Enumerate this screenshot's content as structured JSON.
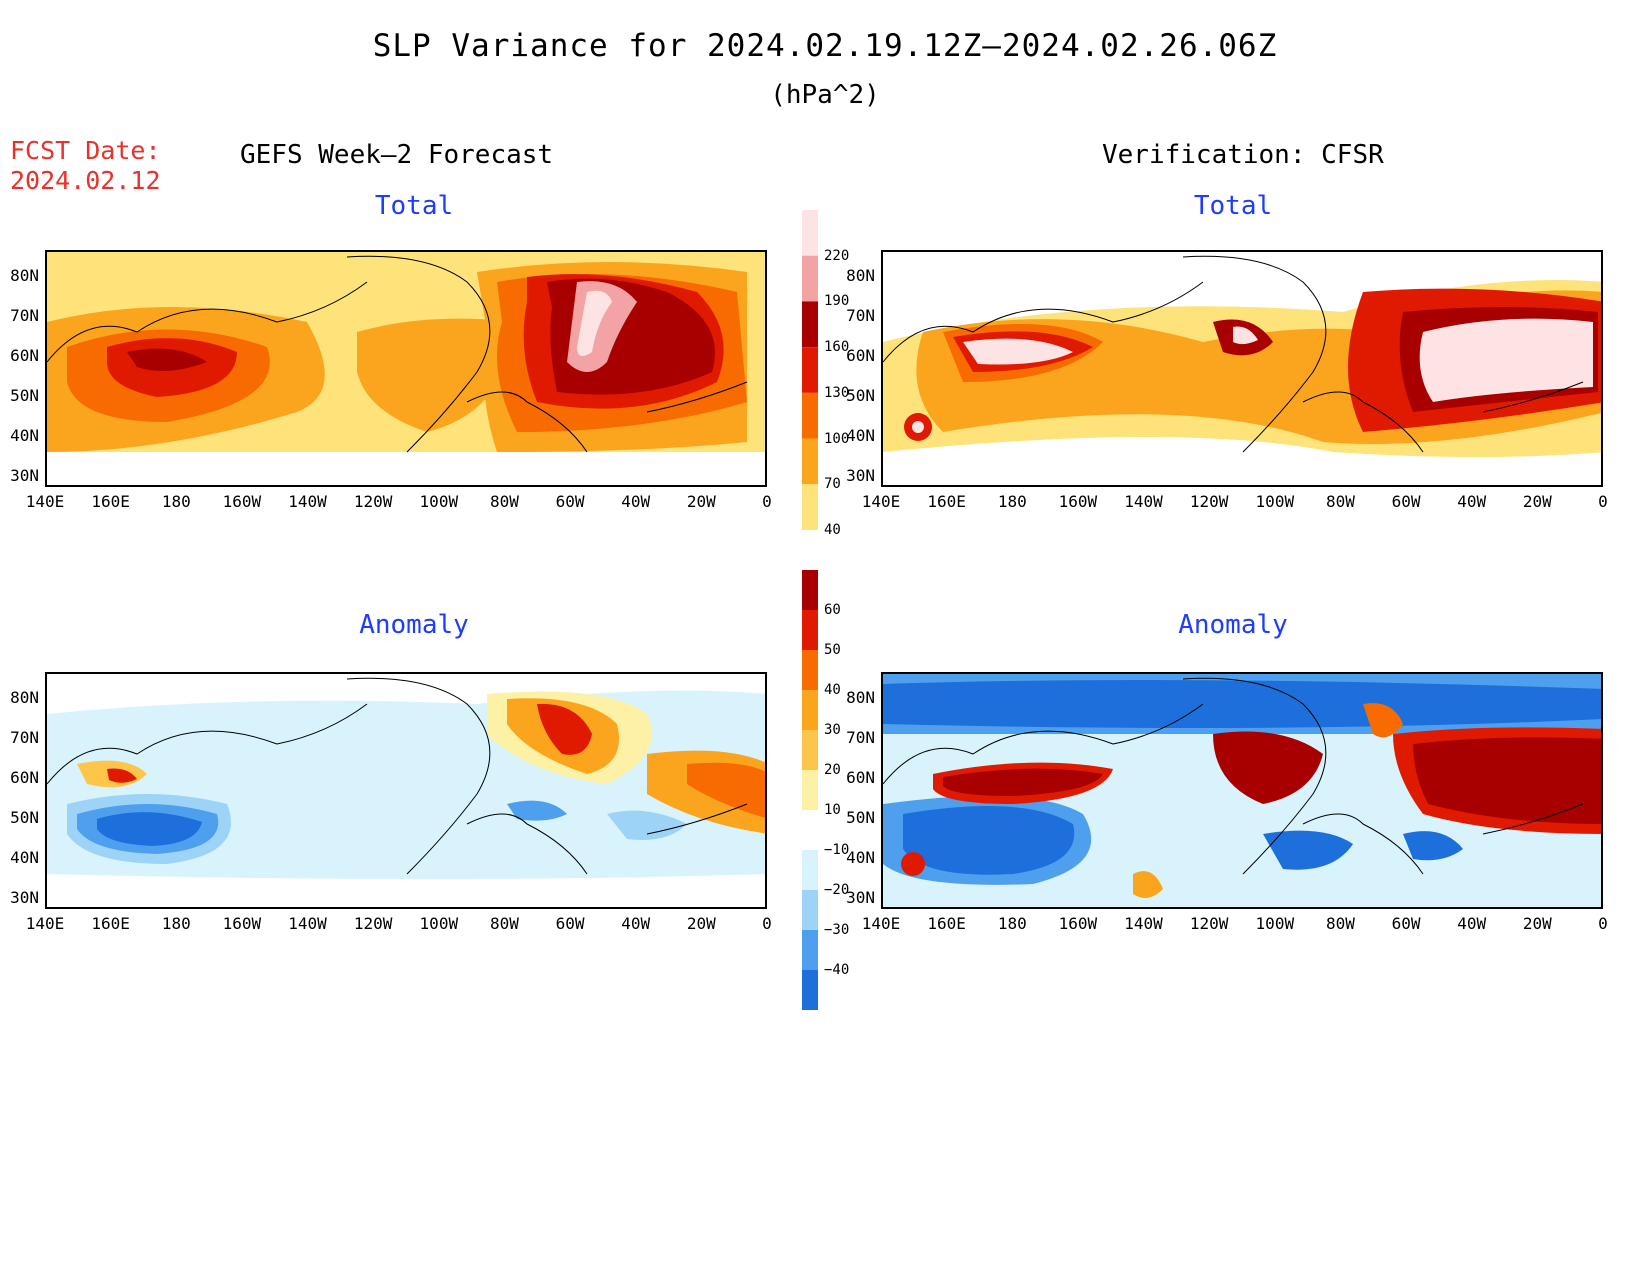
{
  "header": {
    "title": "SLP Variance for 2024.02.19.12Z–2024.02.26.06Z",
    "units": "(hPa^2)",
    "fcst_label": "FCST Date:",
    "fcst_date": "2024.02.12"
  },
  "columns": {
    "left_title": "GEFS Week–2 Forecast",
    "right_title": "Verification: CFSR"
  },
  "panels": {
    "forecast_total_title": "Total",
    "verif_total_title": "Total",
    "forecast_anom_title": "Anomaly",
    "verif_anom_title": "Anomaly"
  },
  "axes": {
    "lat_labels": [
      "80N",
      "70N",
      "60N",
      "50N",
      "40N",
      "30N"
    ],
    "lon_labels": [
      "140E",
      "160E",
      "180",
      "160W",
      "140W",
      "120W",
      "100W",
      "80W",
      "60W",
      "40W",
      "20W",
      "0"
    ]
  },
  "colorbar_total": {
    "levels": [
      "220",
      "190",
      "160",
      "130",
      "100",
      "70",
      "40"
    ],
    "colors": [
      "#fde3e3",
      "#f3a3a3",
      "#a80000",
      "#e01a00",
      "#f86b00",
      "#fba51f",
      "#fde37a"
    ]
  },
  "colorbar_anomaly": {
    "levels": [
      "60",
      "50",
      "40",
      "30",
      "20",
      "10",
      "−10",
      "−20",
      "−30",
      "−40"
    ],
    "colors": [
      "#a80000",
      "#e01a00",
      "#f86b00",
      "#fba51f",
      "#fdc64a",
      "#fdf1a6",
      "#ffffff",
      "#d8f3fb",
      "#9dd3f6",
      "#4ea0ee",
      "#1d6fdc"
    ]
  }
}
